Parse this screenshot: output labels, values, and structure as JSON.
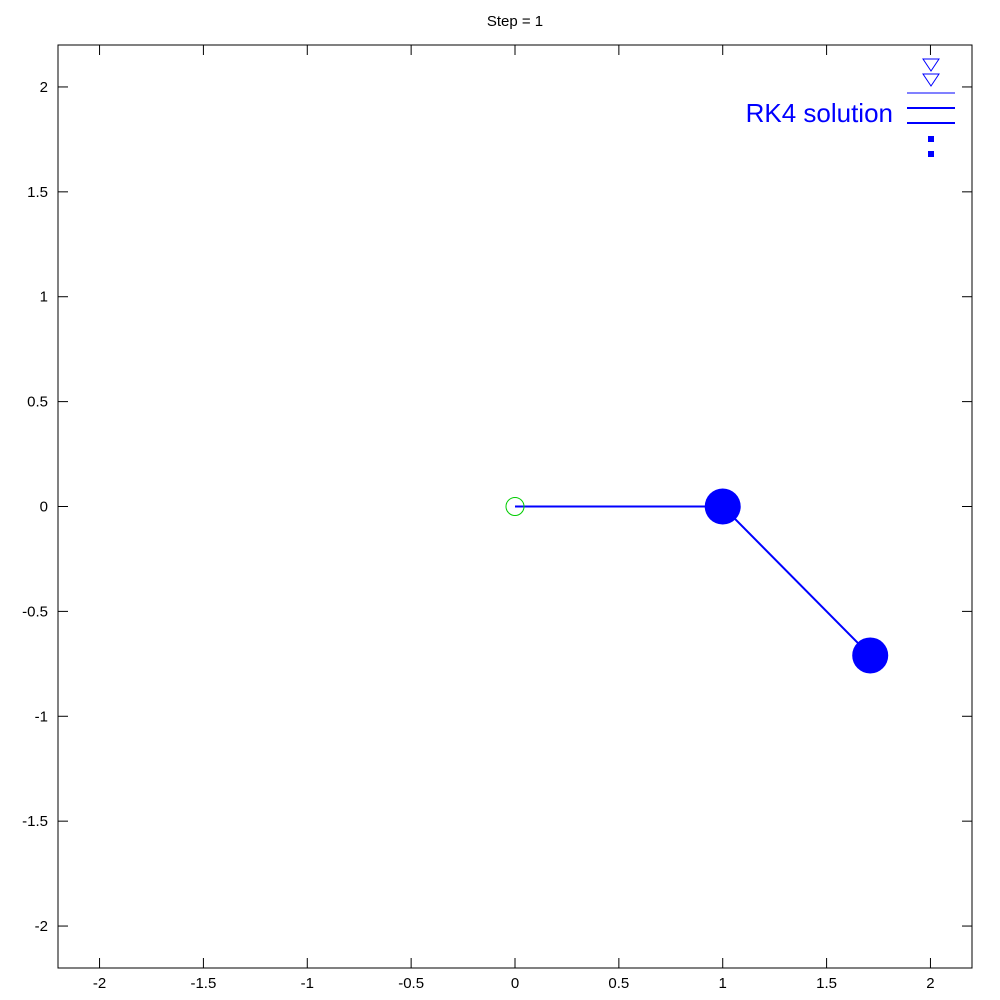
{
  "chart_data": {
    "type": "line",
    "title": "Step = 1",
    "xlabel": "",
    "ylabel": "",
    "xlim": [
      -2.2,
      2.2
    ],
    "ylim": [
      -2.2,
      2.2
    ],
    "x_ticks": [
      -2,
      -1.5,
      -1,
      -0.5,
      0,
      0.5,
      1,
      1.5,
      2
    ],
    "x_tick_labels": [
      "-2",
      "-1.5",
      "-1",
      "-0.5",
      "0",
      "0.5",
      "1",
      "1.5",
      "2"
    ],
    "y_ticks": [
      2,
      1.5,
      1,
      0.5,
      0,
      -0.5,
      -1,
      -1.5,
      -2
    ],
    "y_tick_labels": [
      "2",
      "1.5",
      "1",
      "0.5",
      "0",
      "-0.5",
      "-1",
      "-1.5",
      "-2"
    ],
    "grid": false,
    "legend": {
      "placement": "top-right",
      "entries": [
        {
          "label": "",
          "marker": "triangle-down",
          "color": "#0000ff"
        },
        {
          "label": "RK4 solution",
          "marker": "line",
          "color": "#0000ff"
        },
        {
          "label": "",
          "marker": "dots",
          "color": "#0000ff"
        }
      ]
    },
    "pivot": {
      "x": 0,
      "y": 0,
      "color": "#00cc00"
    },
    "series": [
      {
        "name": "RK4 solution",
        "color": "#0000ff",
        "x": [
          0,
          1,
          1.71
        ],
        "y": [
          0,
          0,
          -0.71
        ],
        "bob_indices": [
          1,
          2
        ]
      }
    ]
  }
}
